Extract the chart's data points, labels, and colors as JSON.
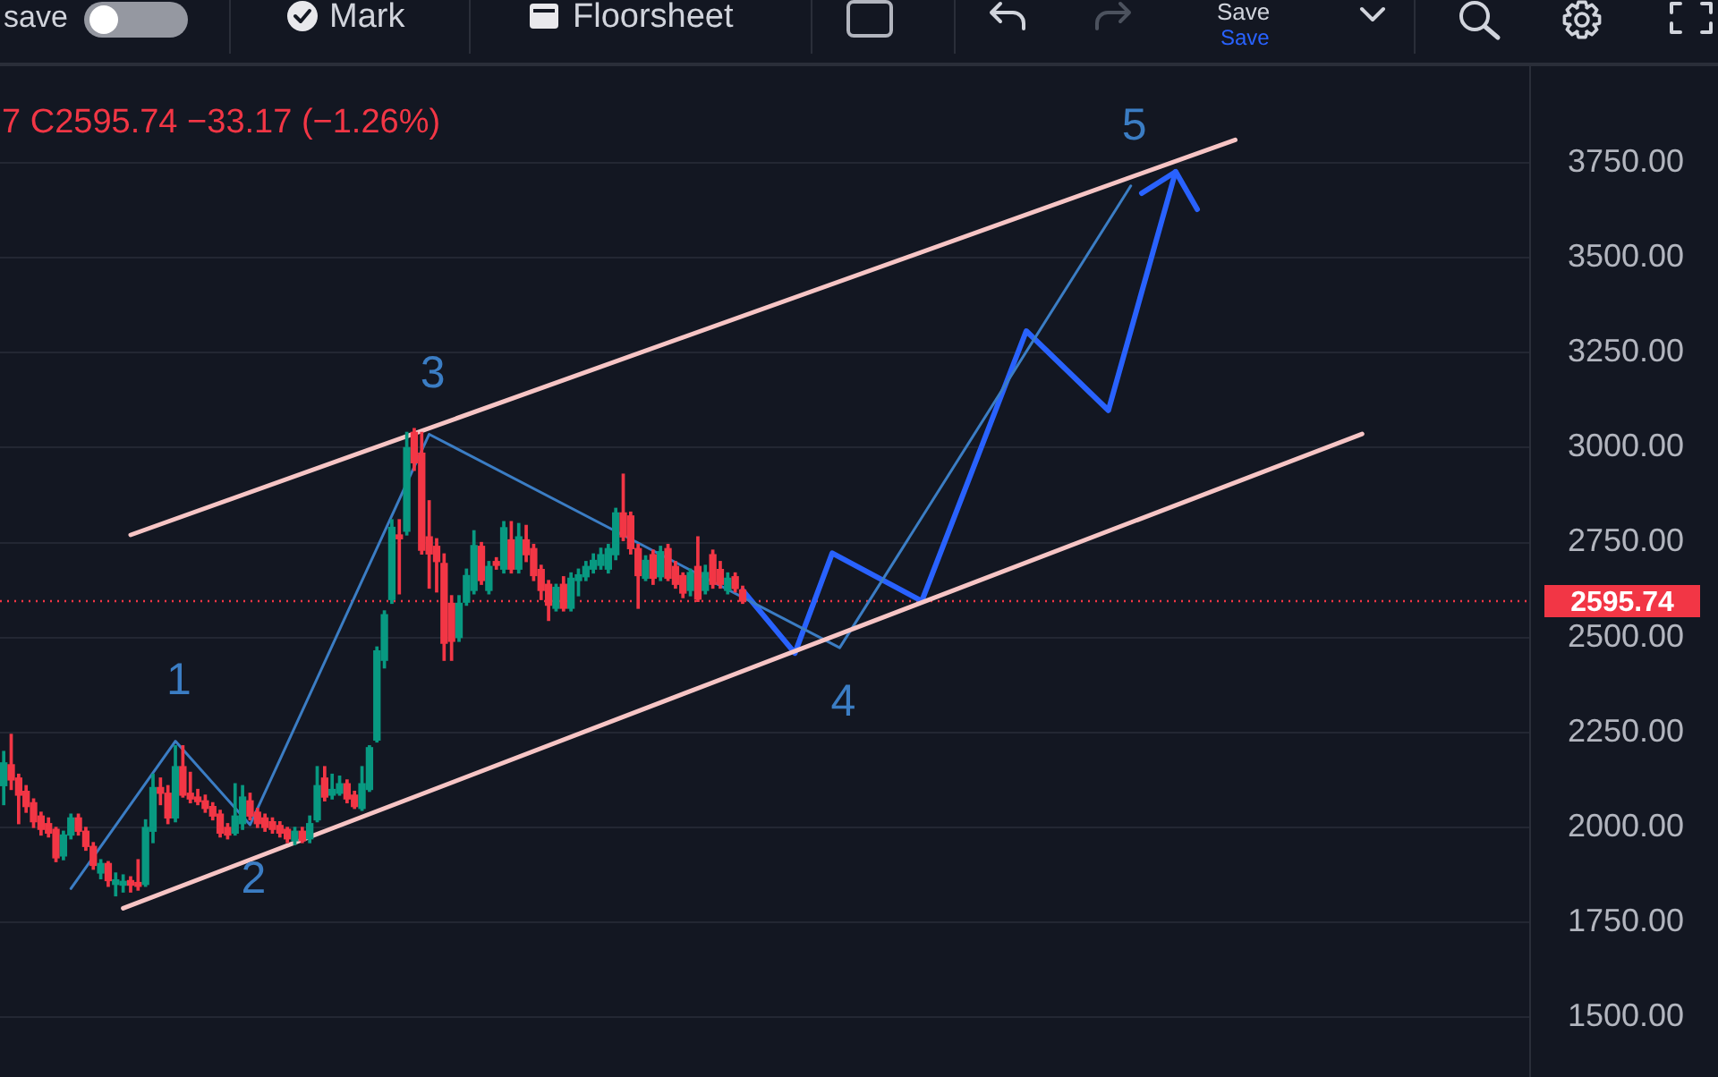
{
  "chart_data": {
    "type": "candlestick",
    "categories": [
      null,
      null,
      null,
      null,
      null,
      null,
      null,
      null,
      null,
      null,
      null,
      null,
      null,
      null,
      null,
      null,
      null,
      null,
      null,
      null,
      null,
      null,
      null,
      null,
      null,
      null,
      null,
      null,
      null,
      null,
      null,
      null,
      null,
      null,
      null,
      null,
      null,
      null,
      null,
      null,
      null,
      null,
      null,
      null,
      null,
      null,
      null,
      null,
      null,
      null,
      null,
      null,
      null,
      null,
      null,
      null,
      null,
      null,
      null,
      null,
      null,
      null,
      null,
      null,
      null,
      null,
      null,
      null,
      null,
      null,
      null,
      null,
      null,
      null,
      null,
      null,
      null,
      null,
      null,
      null,
      null,
      null,
      null,
      null,
      null,
      null,
      null,
      null,
      null,
      null,
      null,
      null,
      null,
      null,
      null,
      null,
      null,
      null,
      null,
      null,
      null,
      null,
      null,
      null,
      null,
      null,
      null,
      null,
      null,
      null,
      null,
      null,
      null,
      null,
      null,
      null,
      null,
      null,
      null,
      null,
      null,
      null,
      null,
      null,
      null,
      null,
      null,
      null,
      null,
      null,
      null,
      null,
      null,
      null,
      null,
      null,
      null,
      null,
      null,
      null,
      null,
      null,
      null,
      null,
      null,
      null,
      null,
      null,
      null,
      null,
      null,
      null,
      null,
      null,
      null,
      null,
      null,
      null,
      null,
      null,
      null,
      null,
      null,
      null,
      null,
      null,
      null,
      null,
      null,
      null,
      null,
      null,
      null,
      null,
      null,
      null,
      null,
      null,
      null,
      null,
      null,
      null,
      null,
      null,
      null,
      null,
      null,
      null,
      null,
      null,
      null,
      null,
      null,
      null,
      null,
      null,
      null,
      null,
      null,
      null,
      null,
      null,
      null,
      null,
      null
    ],
    "ohlc": [
      [
        2110,
        2200,
        2060,
        2170
      ],
      [
        2165,
        2245,
        2100,
        2125
      ],
      [
        2130,
        2140,
        2010,
        2085
      ],
      [
        2095,
        2110,
        2040,
        2055
      ],
      [
        2065,
        2075,
        2000,
        2015
      ],
      [
        2030,
        2040,
        1980,
        1995
      ],
      [
        2010,
        2025,
        1975,
        1985
      ],
      [
        1995,
        2000,
        1910,
        1920
      ],
      [
        1925,
        1990,
        1915,
        1980
      ],
      [
        1980,
        2035,
        1970,
        2025
      ],
      [
        2025,
        2035,
        1980,
        1990
      ],
      [
        1990,
        2000,
        1940,
        1950
      ],
      [
        1950,
        1960,
        1890,
        1900
      ],
      [
        1880,
        1915,
        1865,
        1905
      ],
      [
        1905,
        1910,
        1845,
        1860
      ],
      [
        1850,
        1880,
        1820,
        1862
      ],
      [
        1848,
        1875,
        1830,
        1858
      ],
      [
        1860,
        1870,
        1830,
        1848
      ],
      [
        1855,
        1915,
        1835,
        1845
      ],
      [
        1850,
        2020,
        1845,
        2000
      ],
      [
        1990,
        2140,
        1960,
        2105
      ],
      [
        2105,
        2130,
        2060,
        2090
      ],
      [
        2090,
        2110,
        2010,
        2025
      ],
      [
        2025,
        2215,
        2015,
        2160
      ],
      [
        2160,
        2215,
        2080,
        2085
      ],
      [
        2090,
        2145,
        2065,
        2075
      ],
      [
        2080,
        2100,
        2060,
        2068
      ],
      [
        2070,
        2085,
        2040,
        2050
      ],
      [
        2055,
        2065,
        2020,
        2030
      ],
      [
        2035,
        2045,
        1975,
        1985
      ],
      [
        2000,
        2010,
        1970,
        1980
      ],
      [
        1985,
        2115,
        1980,
        2030
      ],
      [
        2010,
        2110,
        1995,
        2080
      ],
      [
        2070,
        2090,
        2020,
        2030
      ],
      [
        2040,
        2050,
        2000,
        2010
      ],
      [
        2025,
        2035,
        1990,
        2000
      ],
      [
        2015,
        2025,
        1985,
        1995
      ],
      [
        2005,
        2015,
        1975,
        1985
      ],
      [
        1995,
        2000,
        1960,
        1970
      ],
      [
        1965,
        2000,
        1955,
        1990
      ],
      [
        1990,
        2000,
        1960,
        1965
      ],
      [
        1970,
        2030,
        1960,
        2010
      ],
      [
        2020,
        2160,
        2015,
        2110
      ],
      [
        2130,
        2160,
        2070,
        2080
      ],
      [
        2085,
        2140,
        2075,
        2100
      ],
      [
        2090,
        2135,
        2085,
        2115
      ],
      [
        2115,
        2125,
        2065,
        2075
      ],
      [
        2085,
        2095,
        2050,
        2055
      ],
      [
        2050,
        2160,
        2045,
        2115
      ],
      [
        2100,
        2215,
        2095,
        2210
      ],
      [
        2230,
        2475,
        2225,
        2465
      ],
      [
        2440,
        2570,
        2420,
        2560
      ],
      [
        2600,
        2810,
        2590,
        2790
      ],
      [
        2770,
        2810,
        2615,
        2760
      ],
      [
        2780,
        3040,
        2770,
        3000
      ],
      [
        3040,
        3050,
        2940,
        2960
      ],
      [
        2985,
        3040,
        2720,
        2730
      ],
      [
        2765,
        2860,
        2630,
        2720
      ],
      [
        2740,
        2760,
        2620,
        2700
      ],
      [
        2695,
        2720,
        2440,
        2485
      ],
      [
        2590,
        2610,
        2440,
        2490
      ],
      [
        2500,
        2610,
        2490,
        2590
      ],
      [
        2593,
        2680,
        2585,
        2663
      ],
      [
        2624,
        2781,
        2615,
        2742
      ],
      [
        2740,
        2750,
        2640,
        2650
      ],
      [
        2624,
        2700,
        2615,
        2687
      ],
      [
        2700,
        2710,
        2680,
        2690
      ],
      [
        2680,
        2805,
        2670,
        2789
      ],
      [
        2757,
        2805,
        2670,
        2680
      ],
      [
        2680,
        2800,
        2670,
        2765
      ],
      [
        2757,
        2795,
        2700,
        2718
      ],
      [
        2734,
        2745,
        2650,
        2663
      ],
      [
        2679,
        2690,
        2600,
        2624
      ],
      [
        2640,
        2650,
        2545,
        2585
      ],
      [
        2577,
        2640,
        2570,
        2632
      ],
      [
        2640,
        2660,
        2570,
        2577
      ],
      [
        2577,
        2670,
        2570,
        2656
      ],
      [
        2650,
        2680,
        2610,
        2665
      ],
      [
        2660,
        2700,
        2650,
        2687
      ],
      [
        2680,
        2720,
        2670,
        2703
      ],
      [
        2690,
        2735,
        2680,
        2718
      ],
      [
        2680,
        2745,
        2670,
        2734
      ],
      [
        2718,
        2840,
        2705,
        2828
      ],
      [
        2828,
        2930,
        2755,
        2765
      ],
      [
        2820,
        2830,
        2720,
        2734
      ],
      [
        2734,
        2745,
        2577,
        2663
      ],
      [
        2656,
        2715,
        2650,
        2703
      ],
      [
        2718,
        2730,
        2640,
        2656
      ],
      [
        2660,
        2740,
        2650,
        2726
      ],
      [
        2734,
        2745,
        2650,
        2656
      ],
      [
        2687,
        2700,
        2630,
        2640
      ],
      [
        2663,
        2670,
        2605,
        2617
      ],
      [
        2624,
        2680,
        2610,
        2671
      ],
      [
        2687,
        2765,
        2595,
        2601
      ],
      [
        2624,
        2690,
        2615,
        2671
      ],
      [
        2718,
        2730,
        2630,
        2640
      ],
      [
        2679,
        2700,
        2630,
        2640
      ],
      [
        2624,
        2670,
        2615,
        2656
      ],
      [
        2660,
        2670,
        2620,
        2629
      ],
      [
        2625,
        2635,
        2590,
        2595.74
      ],
      null,
      null,
      null,
      null,
      null,
      null,
      null,
      null,
      null,
      null,
      null,
      null,
      null,
      null,
      null,
      null,
      null,
      null,
      null,
      null,
      null,
      null,
      null,
      null,
      null,
      null,
      null,
      null,
      null,
      null,
      null,
      null,
      null,
      null,
      null,
      null,
      null,
      null,
      null,
      null,
      null,
      null,
      null,
      null,
      null,
      null,
      null,
      null,
      null,
      null,
      null,
      null,
      null,
      null,
      null,
      null,
      null,
      null,
      null,
      null,
      null,
      null,
      null,
      null,
      null,
      null,
      null,
      null,
      null,
      null,
      null,
      null,
      null,
      null,
      null,
      null,
      null,
      null,
      null,
      null,
      null,
      null,
      null,
      null,
      null,
      null,
      null,
      null,
      null,
      null,
      null,
      null,
      null,
      null,
      null,
      null,
      null,
      null,
      null,
      null,
      null,
      null,
      null,
      null,
      null
    ],
    "colors": [
      "#089981",
      "#f23645",
      "#f23645",
      "#f23645",
      "#f23645",
      "#f23645",
      "#f23645",
      "#f23645",
      "#089981",
      "#089981",
      "#f23645",
      "#f23645",
      "#f23645",
      "#089981",
      "#f23645",
      "#089981",
      "#089981",
      "#f23645",
      "#f23645",
      "#089981",
      "#089981",
      "#f23645",
      "#f23645",
      "#089981",
      "#f23645",
      "#f23645",
      "#f23645",
      "#f23645",
      "#f23645",
      "#f23645",
      "#f23645",
      "#089981",
      "#089981",
      "#f23645",
      "#f23645",
      "#f23645",
      "#f23645",
      "#f23645",
      "#f23645",
      "#089981",
      "#f23645",
      "#089981",
      "#089981",
      "#f23645",
      "#089981",
      "#089981",
      "#f23645",
      "#f23645",
      "#089981",
      "#089981",
      "#089981",
      "#089981",
      "#089981",
      "#f23645",
      "#089981",
      "#f23645",
      "#f23645",
      "#f23645",
      "#f23645",
      "#f23645",
      "#f23645",
      "#089981",
      "#089981",
      "#089981",
      "#f23645",
      "#089981",
      "#f23645",
      "#089981",
      "#f23645",
      "#089981",
      "#f23645",
      "#f23645",
      "#f23645",
      "#f23645",
      "#089981",
      "#f23645",
      "#089981",
      "#089981",
      "#089981",
      "#089981",
      "#089981",
      "#089981",
      "#089981",
      "#f23645",
      "#f23645",
      "#f23645",
      "#089981",
      "#f23645",
      "#089981",
      "#f23645",
      "#f23645",
      "#f23645",
      "#089981",
      "#f23645",
      "#089981",
      "#f23645",
      "#f23645",
      "#089981",
      "#f23645",
      "#f23645",
      null,
      null,
      null,
      null,
      null,
      null,
      null,
      null,
      null,
      null,
      null,
      null,
      null,
      null,
      null,
      null,
      null,
      null,
      null,
      null,
      null,
      null,
      null,
      null,
      null,
      null,
      null,
      null,
      null,
      null,
      null,
      null,
      null,
      null,
      null,
      null,
      null,
      null,
      null,
      null,
      null,
      null,
      null,
      null,
      null,
      null,
      null,
      null,
      null,
      null,
      null,
      null,
      null,
      null,
      null,
      null,
      null,
      null,
      null,
      null,
      null,
      null,
      null,
      null,
      null,
      null,
      null,
      null,
      null,
      null,
      null,
      null,
      null,
      null,
      null,
      null,
      null,
      null,
      null,
      null,
      null,
      null,
      null,
      null,
      null,
      null,
      null,
      null,
      null,
      null,
      null,
      null,
      null,
      null,
      null,
      null,
      null,
      null,
      null,
      null,
      null,
      null,
      null,
      null,
      null
    ],
    "series": [
      {
        "type": "line",
        "color": "#f7c5c5",
        "values": [
          null,
          null,
          null,
          null,
          null,
          null,
          null,
          null,
          null,
          null,
          null,
          null,
          null,
          null,
          null,
          null,
          null,
          2770,
          null,
          null,
          null,
          null,
          null,
          null,
          null,
          null,
          null,
          null,
          null,
          null,
          null,
          null,
          null,
          null,
          null,
          null,
          null,
          null,
          null,
          null,
          null,
          null,
          null,
          null,
          null,
          null,
          null,
          null,
          null,
          null,
          null,
          null,
          null,
          null,
          null,
          null,
          null,
          null,
          null,
          null,
          null,
          null,
          null,
          null,
          null,
          null,
          null,
          null,
          null,
          null,
          null,
          null,
          null,
          null,
          null,
          null,
          null,
          null,
          null,
          null,
          null,
          null,
          null,
          null,
          null,
          null,
          null,
          null,
          null,
          null,
          null,
          null,
          null,
          null,
          null,
          null,
          null,
          null,
          null,
          null,
          null,
          null,
          null,
          null,
          null,
          null,
          null,
          null,
          null,
          null,
          null,
          null,
          null,
          null,
          null,
          null,
          null,
          null,
          null,
          null,
          null,
          null,
          null,
          null,
          null,
          null,
          null,
          null,
          null,
          null,
          null,
          null,
          null,
          null,
          null,
          null,
          null,
          null,
          null,
          null,
          null,
          null,
          null,
          null,
          null,
          null,
          null,
          null,
          null,
          null,
          null,
          null,
          null,
          null,
          null,
          null,
          null,
          null,
          null,
          null,
          null,
          null,
          null,
          null,
          null,
          3810,
          null,
          null,
          null,
          null,
          null,
          null,
          null,
          null,
          null,
          null,
          null,
          null,
          null,
          null,
          null,
          null,
          null,
          null,
          null,
          null,
          null,
          null,
          null,
          null,
          null,
          null,
          null,
          null,
          null,
          null,
          null,
          null,
          null,
          null,
          null,
          null,
          null,
          null,
          null
        ]
      },
      {
        "type": "line",
        "color": "#f7c5c5",
        "values": [
          null,
          null,
          null,
          null,
          null,
          null,
          null,
          null,
          null,
          null,
          null,
          null,
          null,
          null,
          null,
          null,
          1787,
          null,
          null,
          null,
          null,
          null,
          null,
          null,
          null,
          null,
          null,
          null,
          null,
          null,
          null,
          null,
          null,
          null,
          null,
          null,
          null,
          null,
          null,
          null,
          null,
          null,
          null,
          null,
          null,
          null,
          null,
          null,
          null,
          null,
          null,
          null,
          null,
          null,
          null,
          null,
          null,
          null,
          null,
          null,
          null,
          null,
          null,
          null,
          null,
          null,
          null,
          null,
          null,
          null,
          null,
          null,
          null,
          null,
          null,
          null,
          null,
          null,
          null,
          null,
          null,
          null,
          null,
          null,
          null,
          null,
          null,
          null,
          null,
          null,
          null,
          null,
          null,
          null,
          null,
          null,
          null,
          null,
          null,
          null,
          null,
          null,
          null,
          null,
          null,
          null,
          null,
          null,
          null,
          null,
          null,
          null,
          null,
          null,
          null,
          null,
          null,
          null,
          null,
          null,
          null,
          null,
          null,
          null,
          null,
          null,
          null,
          null,
          null,
          null,
          null,
          null,
          null,
          null,
          null,
          null,
          null,
          null,
          null,
          null,
          null,
          null,
          null,
          null,
          null,
          null,
          null,
          null,
          null,
          null,
          null,
          null,
          null,
          null,
          null,
          null,
          null,
          null,
          null,
          null,
          null,
          null,
          null,
          null,
          null,
          null,
          null,
          null,
          null,
          null,
          null,
          null,
          null,
          null,
          null,
          null,
          null,
          null,
          null,
          null,
          null,
          null,
          3036,
          null,
          null,
          null,
          null,
          null,
          null,
          null,
          null,
          null,
          null,
          null,
          null,
          null,
          null,
          null,
          null,
          null,
          null,
          null,
          null,
          null,
          null
        ]
      },
      {
        "type": "line",
        "color": "#3b7dc4",
        "values": [
          null,
          null,
          null,
          null,
          null,
          null,
          null,
          null,
          null,
          1839,
          null,
          null,
          null,
          null,
          null,
          null,
          null,
          null,
          null,
          null,
          null,
          null,
          null,
          2227,
          null,
          null,
          null,
          null,
          null,
          null,
          null,
          null,
          null,
          2007,
          null,
          null,
          null,
          null,
          null,
          null,
          null,
          null,
          null,
          null,
          null,
          null,
          null,
          null,
          null,
          null,
          null,
          null,
          null,
          null,
          null,
          null,
          null,
          3035,
          null,
          null,
          null,
          null,
          null,
          null,
          null,
          null,
          null,
          null,
          null,
          null,
          null,
          null,
          null,
          null,
          null,
          null,
          null,
          null,
          null,
          null,
          null,
          null,
          null,
          null,
          null,
          null,
          null,
          null,
          null,
          null,
          null,
          null,
          null,
          null,
          null,
          null,
          null,
          null,
          null,
          null,
          null,
          null,
          null,
          null,
          null,
          null,
          null,
          null,
          null,
          null,
          null,
          null,
          2473,
          null,
          null,
          null,
          null,
          null,
          null,
          null,
          null,
          null,
          null,
          null,
          null,
          null,
          null,
          null,
          null,
          null,
          null,
          null,
          null,
          null,
          null,
          null,
          null,
          null,
          null,
          null,
          null,
          null,
          null,
          null,
          null,
          null,
          null,
          null,
          null,
          null,
          null,
          3689,
          null,
          null,
          null,
          null,
          null,
          null,
          null,
          null,
          null,
          null,
          null,
          null,
          null,
          null,
          null,
          null,
          null,
          null,
          null,
          null,
          null,
          null,
          null,
          null,
          null,
          null,
          null,
          null,
          null,
          null,
          null,
          null,
          null,
          null,
          null,
          null,
          null,
          null,
          null,
          null,
          null,
          null,
          null,
          null,
          null,
          null,
          null,
          null,
          null,
          null,
          null,
          null,
          null
        ]
      },
      {
        "type": "line",
        "color": "#2962ff",
        "values": [
          null,
          null,
          null,
          null,
          null,
          null,
          null,
          null,
          null,
          null,
          null,
          null,
          null,
          null,
          null,
          null,
          null,
          null,
          null,
          null,
          null,
          null,
          null,
          null,
          null,
          null,
          null,
          null,
          null,
          null,
          null,
          null,
          null,
          null,
          null,
          null,
          null,
          null,
          null,
          null,
          null,
          null,
          null,
          null,
          null,
          null,
          null,
          null,
          null,
          null,
          null,
          null,
          null,
          null,
          null,
          null,
          null,
          null,
          null,
          null,
          null,
          null,
          null,
          null,
          null,
          null,
          null,
          null,
          null,
          null,
          null,
          null,
          null,
          null,
          null,
          null,
          null,
          null,
          null,
          null,
          null,
          null,
          null,
          null,
          null,
          null,
          null,
          null,
          null,
          null,
          null,
          null,
          null,
          null,
          null,
          null,
          null,
          null,
          null,
          2624,
          null,
          null,
          null,
          null,
          null,
          null,
          2459,
          null,
          null,
          null,
          null,
          2722,
          null,
          null,
          null,
          null,
          null,
          null,
          null,
          null,
          null,
          null,
          null,
          2596,
          null,
          null,
          null,
          null,
          null,
          null,
          null,
          null,
          null,
          null,
          null,
          null,
          null,
          3307,
          null,
          null,
          null,
          null,
          null,
          null,
          null,
          null,
          null,
          null,
          3098,
          null,
          null,
          null,
          null,
          null,
          null,
          null,
          null,
          3726,
          null,
          null,
          null,
          null,
          null,
          null,
          null,
          null,
          null,
          null,
          null,
          null,
          null,
          null,
          null,
          null,
          null,
          null,
          null,
          null,
          null,
          null,
          null,
          null,
          null,
          null,
          null,
          null,
          null,
          null,
          null,
          null,
          null,
          null,
          null,
          null,
          null,
          null,
          null,
          null,
          null,
          null,
          null,
          null,
          null,
          null,
          null
        ]
      }
    ],
    "ylim": [
      1343,
      4004
    ],
    "yticks": [
      {
        "value": 1500,
        "label": "1500.00"
      },
      {
        "value": 1750,
        "label": "1750.00"
      },
      {
        "value": 2000,
        "label": "2000.00"
      },
      {
        "value": 2250,
        "label": "2250.00"
      },
      {
        "value": 2500,
        "label": "2500.00"
      },
      {
        "value": 2750,
        "label": "2750.00"
      },
      {
        "value": 3000,
        "label": "3000.00"
      },
      {
        "value": 3250,
        "label": "3250.00"
      },
      {
        "value": 3500,
        "label": "3500.00"
      },
      {
        "value": 3750,
        "label": "3750.00"
      }
    ],
    "grid": "y",
    "legend": false,
    "ref_lines": [
      {
        "axis": "y",
        "value": 2595.74,
        "label": "2595.74",
        "color": "#f23645",
        "line_style": "dotted"
      }
    ],
    "annotations": [
      "save",
      "Mark",
      "Floorsheet",
      "Save",
      "Save",
      "7 C2595.74 −33.17 (−1.26%)",
      {
        "text": "1",
        "y": 2227
      },
      {
        "text": "2",
        "y": 2007
      },
      {
        "text": "3",
        "y": 3035
      },
      {
        "text": "4",
        "y": 2473
      },
      {
        "text": "5",
        "y": 3689
      }
    ]
  }
}
